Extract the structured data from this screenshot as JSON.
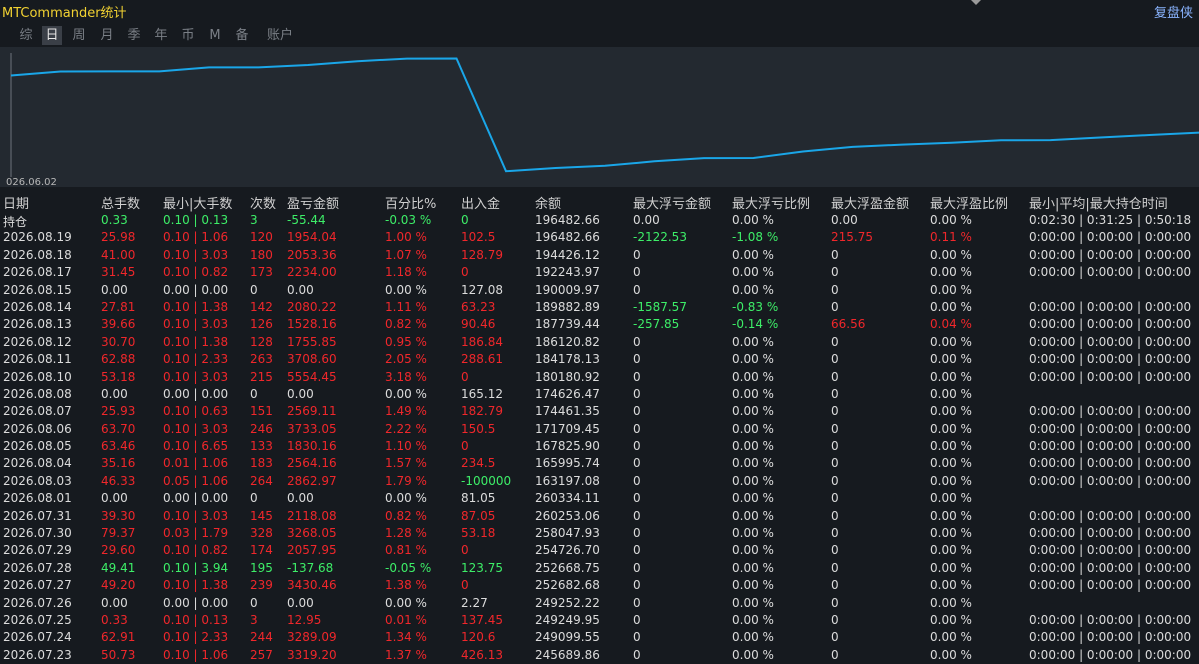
{
  "app_title": "MTCommander统计",
  "top_right_link": "复盘侠",
  "colors": {
    "profit": "#f0272b",
    "loss": "#3dee68",
    "equity_line": "#1aa6e8",
    "accent_title": "#f2d232"
  },
  "tabs": [
    "综",
    "日",
    "周",
    "月",
    "季",
    "年",
    "币",
    "M",
    "备",
    "账户"
  ],
  "active_tab": "日",
  "chart_start_label": "026.06.02",
  "headers": [
    "日期",
    "总手数",
    "最小|大手数",
    "次数",
    "盈亏金额",
    "百分比%",
    "出入金",
    "余额",
    "最大浮亏金额",
    "最大浮亏比例",
    "最大浮盈金额",
    "最大浮盈比例",
    "最小|平均|最大持仓时间"
  ],
  "rows": [
    {
      "cells": [
        "持仓",
        "0.33",
        "0.10 | 0.13",
        "3",
        "-55.44",
        "-0.03 %",
        "0",
        "196482.66",
        "0.00",
        "0.00 %",
        "0.00",
        "0.00 %",
        "0:02:30 | 0:31:25 | 0:50:18"
      ],
      "tone": "green",
      "open": true
    },
    {
      "cells": [
        "2026.08.19",
        "25.98",
        "0.10 | 1.06",
        "120",
        "1954.04",
        "1.00 %",
        "102.5",
        "196482.66",
        "-2122.53",
        "-1.08 %",
        "215.75",
        "0.11 %",
        "0:00:00 | 0:00:00 | 0:00:00"
      ],
      "tone": "red",
      "float_loss": true,
      "float_profit": true
    },
    {
      "cells": [
        "2026.08.18",
        "41.00",
        "0.10 | 3.03",
        "180",
        "2053.36",
        "1.07 %",
        "128.79",
        "194426.12",
        "0",
        "0.00 %",
        "0",
        "0.00 %",
        "0:00:00 | 0:00:00 | 0:00:00"
      ],
      "tone": "red"
    },
    {
      "cells": [
        "2026.08.17",
        "31.45",
        "0.10 | 0.82",
        "173",
        "2234.00",
        "1.18 %",
        "0",
        "192243.97",
        "0",
        "0.00 %",
        "0",
        "0.00 %",
        "0:00:00 | 0:00:00 | 0:00:00"
      ],
      "tone": "red"
    },
    {
      "cells": [
        "2026.08.15",
        "0.00",
        "0.00 | 0.00",
        "0",
        "0.00",
        "0.00 %",
        "127.08",
        "190009.97",
        "0",
        "0.00 %",
        "0",
        "0.00 %",
        ""
      ],
      "tone": "white"
    },
    {
      "cells": [
        "2026.08.14",
        "27.81",
        "0.10 | 1.38",
        "142",
        "2080.22",
        "1.11 %",
        "63.23",
        "189882.89",
        "-1587.57",
        "-0.83 %",
        "0",
        "0.00 %",
        "0:00:00 | 0:00:00 | 0:00:00"
      ],
      "tone": "red",
      "float_loss": true
    },
    {
      "cells": [
        "2026.08.13",
        "39.66",
        "0.10 | 3.03",
        "126",
        "1528.16",
        "0.82 %",
        "90.46",
        "187739.44",
        "-257.85",
        "-0.14 %",
        "66.56",
        "0.04 %",
        "0:00:00 | 0:00:00 | 0:00:00"
      ],
      "tone": "red",
      "float_loss": true,
      "float_profit": true
    },
    {
      "cells": [
        "2026.08.12",
        "30.70",
        "0.10 | 1.38",
        "128",
        "1755.85",
        "0.95 %",
        "186.84",
        "186120.82",
        "0",
        "0.00 %",
        "0",
        "0.00 %",
        "0:00:00 | 0:00:00 | 0:00:00"
      ],
      "tone": "red"
    },
    {
      "cells": [
        "2026.08.11",
        "62.88",
        "0.10 | 2.33",
        "263",
        "3708.60",
        "2.05 %",
        "288.61",
        "184178.13",
        "0",
        "0.00 %",
        "0",
        "0.00 %",
        "0:00:00 | 0:00:00 | 0:00:00"
      ],
      "tone": "red"
    },
    {
      "cells": [
        "2026.08.10",
        "53.18",
        "0.10 | 3.03",
        "215",
        "5554.45",
        "3.18 %",
        "0",
        "180180.92",
        "0",
        "0.00 %",
        "0",
        "0.00 %",
        "0:00:00 | 0:00:00 | 0:00:00"
      ],
      "tone": "red"
    },
    {
      "cells": [
        "2026.08.08",
        "0.00",
        "0.00 | 0.00",
        "0",
        "0.00",
        "0.00 %",
        "165.12",
        "174626.47",
        "0",
        "0.00 %",
        "0",
        "0.00 %",
        ""
      ],
      "tone": "white"
    },
    {
      "cells": [
        "2026.08.07",
        "25.93",
        "0.10 | 0.63",
        "151",
        "2569.11",
        "1.49 %",
        "182.79",
        "174461.35",
        "0",
        "0.00 %",
        "0",
        "0.00 %",
        "0:00:00 | 0:00:00 | 0:00:00"
      ],
      "tone": "red"
    },
    {
      "cells": [
        "2026.08.06",
        "63.70",
        "0.10 | 3.03",
        "246",
        "3733.05",
        "2.22 %",
        "150.5",
        "171709.45",
        "0",
        "0.00 %",
        "0",
        "0.00 %",
        "0:00:00 | 0:00:00 | 0:00:00"
      ],
      "tone": "red"
    },
    {
      "cells": [
        "2026.08.05",
        "63.46",
        "0.10 | 6.65",
        "133",
        "1830.16",
        "1.10 %",
        "0",
        "167825.90",
        "0",
        "0.00 %",
        "0",
        "0.00 %",
        "0:00:00 | 0:00:00 | 0:00:00"
      ],
      "tone": "red"
    },
    {
      "cells": [
        "2026.08.04",
        "35.16",
        "0.01 | 1.06",
        "183",
        "2564.16",
        "1.57 %",
        "234.5",
        "165995.74",
        "0",
        "0.00 %",
        "0",
        "0.00 %",
        "0:00:00 | 0:00:00 | 0:00:00"
      ],
      "tone": "red"
    },
    {
      "cells": [
        "2026.08.03",
        "46.33",
        "0.05 | 1.06",
        "264",
        "2862.97",
        "1.79 %",
        "-100000",
        "163197.08",
        "0",
        "0.00 %",
        "0",
        "0.00 %",
        "0:00:00 | 0:00:00 | 0:00:00"
      ],
      "tone": "red",
      "cashflow_neg": true
    },
    {
      "cells": [
        "2026.08.01",
        "0.00",
        "0.00 | 0.00",
        "0",
        "0.00",
        "0.00 %",
        "81.05",
        "260334.11",
        "0",
        "0.00 %",
        "0",
        "0.00 %",
        ""
      ],
      "tone": "white"
    },
    {
      "cells": [
        "2026.07.31",
        "39.30",
        "0.10 | 3.03",
        "145",
        "2118.08",
        "0.82 %",
        "87.05",
        "260253.06",
        "0",
        "0.00 %",
        "0",
        "0.00 %",
        "0:00:00 | 0:00:00 | 0:00:00"
      ],
      "tone": "red"
    },
    {
      "cells": [
        "2026.07.30",
        "79.37",
        "0.03 | 1.79",
        "328",
        "3268.05",
        "1.28 %",
        "53.18",
        "258047.93",
        "0",
        "0.00 %",
        "0",
        "0.00 %",
        "0:00:00 | 0:00:00 | 0:00:00"
      ],
      "tone": "red"
    },
    {
      "cells": [
        "2026.07.29",
        "29.60",
        "0.10 | 0.82",
        "174",
        "2057.95",
        "0.81 %",
        "0",
        "254726.70",
        "0",
        "0.00 %",
        "0",
        "0.00 %",
        "0:00:00 | 0:00:00 | 0:00:00"
      ],
      "tone": "red"
    },
    {
      "cells": [
        "2026.07.28",
        "49.41",
        "0.10 | 3.94",
        "195",
        "-137.68",
        "-0.05 %",
        "123.75",
        "252668.75",
        "0",
        "0.00 %",
        "0",
        "0.00 %",
        "0:00:00 | 0:00:00 | 0:00:00"
      ],
      "tone": "green"
    },
    {
      "cells": [
        "2026.07.27",
        "49.20",
        "0.10 | 1.38",
        "239",
        "3430.46",
        "1.38 %",
        "0",
        "252682.68",
        "0",
        "0.00 %",
        "0",
        "0.00 %",
        "0:00:00 | 0:00:00 | 0:00:00"
      ],
      "tone": "red"
    },
    {
      "cells": [
        "2026.07.26",
        "0.00",
        "0.00 | 0.00",
        "0",
        "0.00",
        "0.00 %",
        "2.27",
        "249252.22",
        "0",
        "0.00 %",
        "0",
        "0.00 %",
        ""
      ],
      "tone": "white"
    },
    {
      "cells": [
        "2026.07.25",
        "0.33",
        "0.10 | 0.13",
        "3",
        "12.95",
        "0.01 %",
        "137.45",
        "249249.95",
        "0",
        "0.00 %",
        "0",
        "0.00 %",
        "0:00:00 | 0:00:00 | 0:00:00"
      ],
      "tone": "red"
    },
    {
      "cells": [
        "2026.07.24",
        "62.91",
        "0.10 | 2.33",
        "244",
        "3289.09",
        "1.34 %",
        "120.6",
        "249099.55",
        "0",
        "0.00 %",
        "0",
        "0.00 %",
        "0:00:00 | 0:00:00 | 0:00:00"
      ],
      "tone": "red"
    },
    {
      "cells": [
        "2026.07.23",
        "50.73",
        "0.10 | 1.06",
        "257",
        "3319.20",
        "1.37 %",
        "426.13",
        "245689.86",
        "0",
        "0.00 %",
        "0",
        "0.00 %",
        "0:00:00 | 0:00:00 | 0:00:00"
      ],
      "tone": "red"
    }
  ]
}
